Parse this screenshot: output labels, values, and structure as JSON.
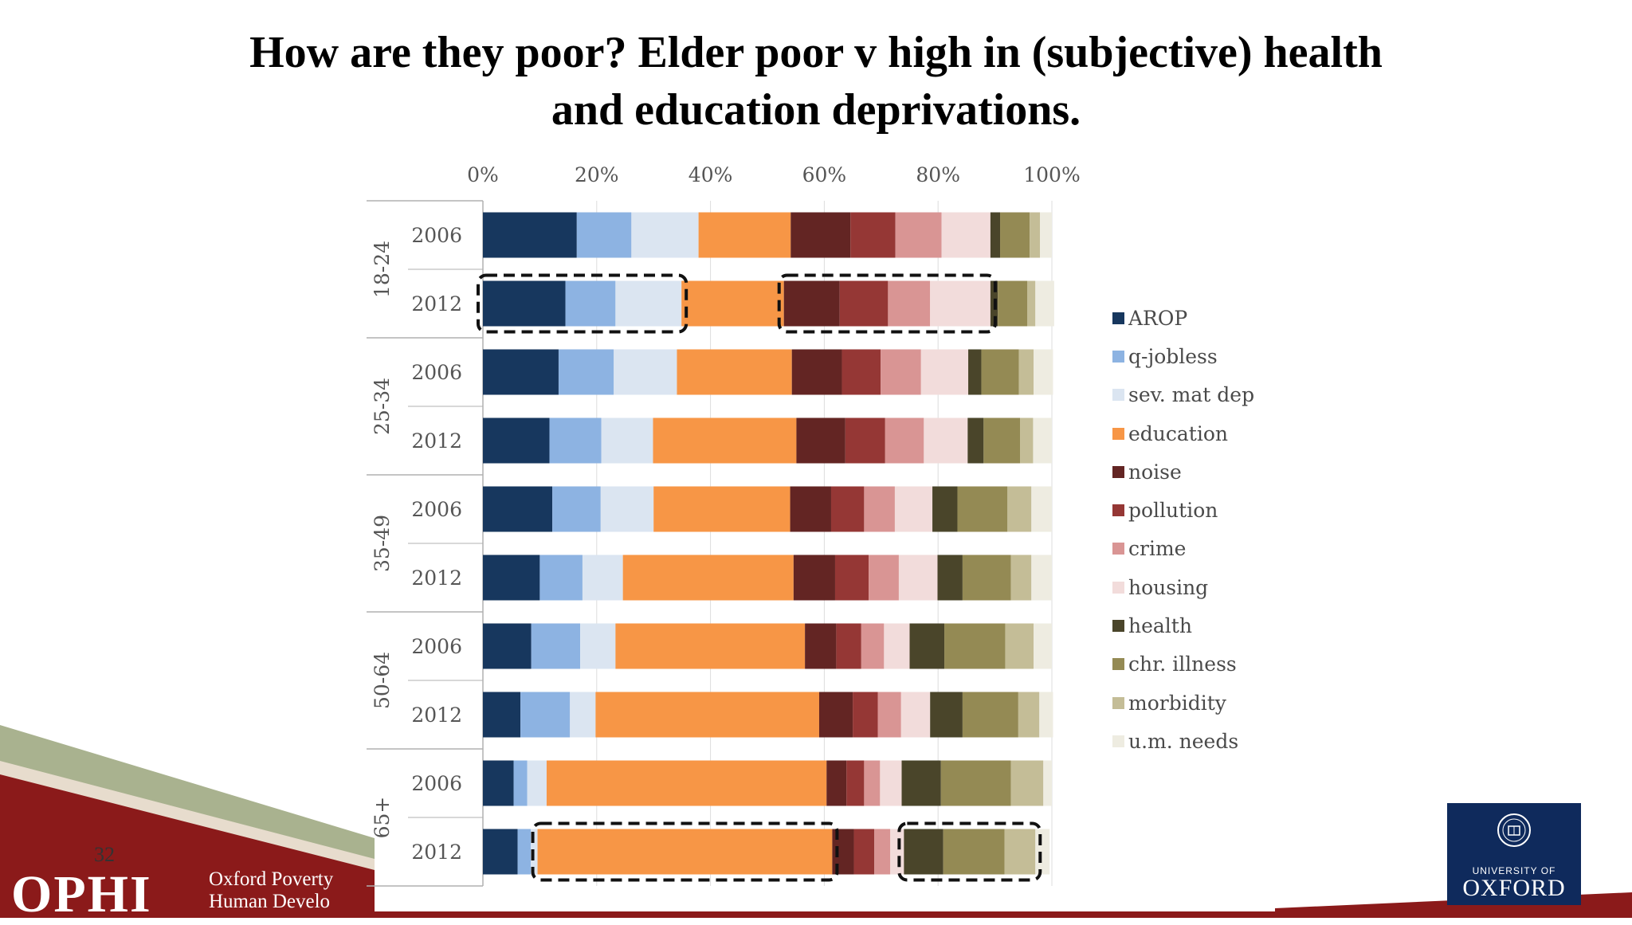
{
  "slide": {
    "title_line1": "How are they poor? Elder poor v high in (subjective) health",
    "title_line2": "and education deprivations.",
    "page_number": "32",
    "footer_logo": "OPHI",
    "footer_logo_sub_line1": "Oxford Poverty",
    "footer_logo_sub_line2": "Human Develo",
    "university_small": "UNIVERSITY OF",
    "university_big": "OXFORD"
  },
  "chart_data": {
    "type": "bar",
    "orientation": "horizontal",
    "stacked": "100%",
    "title": "",
    "xlim": [
      0,
      100
    ],
    "x_tick_labels": [
      "0%",
      "20%",
      "40%",
      "60%",
      "80%",
      "100%"
    ],
    "groups": [
      "18-24",
      "25-34",
      "35-49",
      "50-64",
      "65+"
    ],
    "categories": [
      "2006",
      "2012",
      "2006",
      "2012",
      "2006",
      "2012",
      "2006",
      "2012",
      "2006",
      "2012"
    ],
    "legend_position": "right",
    "series": [
      {
        "name": "AROP",
        "color": "#17375e",
        "values": [
          16.5,
          14.5,
          13.3,
          11.7,
          12.2,
          10.0,
          8.5,
          6.6,
          5.4,
          6.1
        ]
      },
      {
        "name": "q-jobless",
        "color": "#8db3e2",
        "values": [
          9.6,
          8.8,
          9.7,
          9.1,
          8.5,
          7.5,
          8.6,
          8.7,
          2.4,
          2.3
        ]
      },
      {
        "name": "sev. mat dep",
        "color": "#dbe5f1",
        "values": [
          11.8,
          11.6,
          11.1,
          9.1,
          9.3,
          7.1,
          6.2,
          4.5,
          3.4,
          1.2
        ]
      },
      {
        "name": "education",
        "color": "#f79646",
        "values": [
          16.2,
          18.0,
          20.2,
          25.2,
          24.0,
          30.0,
          33.3,
          39.3,
          49.2,
          51.8
        ]
      },
      {
        "name": "noise",
        "color": "#632523",
        "values": [
          10.5,
          9.8,
          8.8,
          8.6,
          7.2,
          7.3,
          5.5,
          5.9,
          3.5,
          3.8
        ]
      },
      {
        "name": "pollution",
        "color": "#953735",
        "values": [
          7.9,
          8.5,
          6.8,
          7.0,
          5.8,
          5.9,
          4.4,
          4.4,
          3.1,
          3.6
        ]
      },
      {
        "name": "crime",
        "color": "#d99594",
        "values": [
          8.1,
          7.4,
          7.1,
          6.8,
          5.4,
          5.3,
          4.0,
          4.1,
          2.8,
          2.8
        ]
      },
      {
        "name": "housing",
        "color": "#f2dcdb",
        "values": [
          8.6,
          10.6,
          8.3,
          7.7,
          6.6,
          6.8,
          4.5,
          5.1,
          3.8,
          2.4
        ]
      },
      {
        "name": "health",
        "color": "#4a452a",
        "values": [
          1.7,
          1.3,
          2.3,
          2.8,
          4.4,
          4.4,
          6.1,
          5.7,
          6.9,
          6.9
        ]
      },
      {
        "name": "chr. illness",
        "color": "#948a54",
        "values": [
          5.2,
          5.2,
          6.6,
          6.4,
          8.8,
          8.5,
          10.7,
          9.8,
          12.3,
          10.8
        ]
      },
      {
        "name": "morbidity",
        "color": "#c4bd97",
        "values": [
          1.8,
          1.4,
          2.6,
          2.3,
          4.2,
          3.6,
          5.0,
          3.7,
          5.7,
          5.4
        ]
      },
      {
        "name": "u.m. needs",
        "color": "#eeece1",
        "values": [
          2.1,
          3.3,
          3.4,
          3.3,
          3.6,
          3.6,
          3.2,
          2.4,
          1.5,
          2.5
        ]
      }
    ]
  }
}
